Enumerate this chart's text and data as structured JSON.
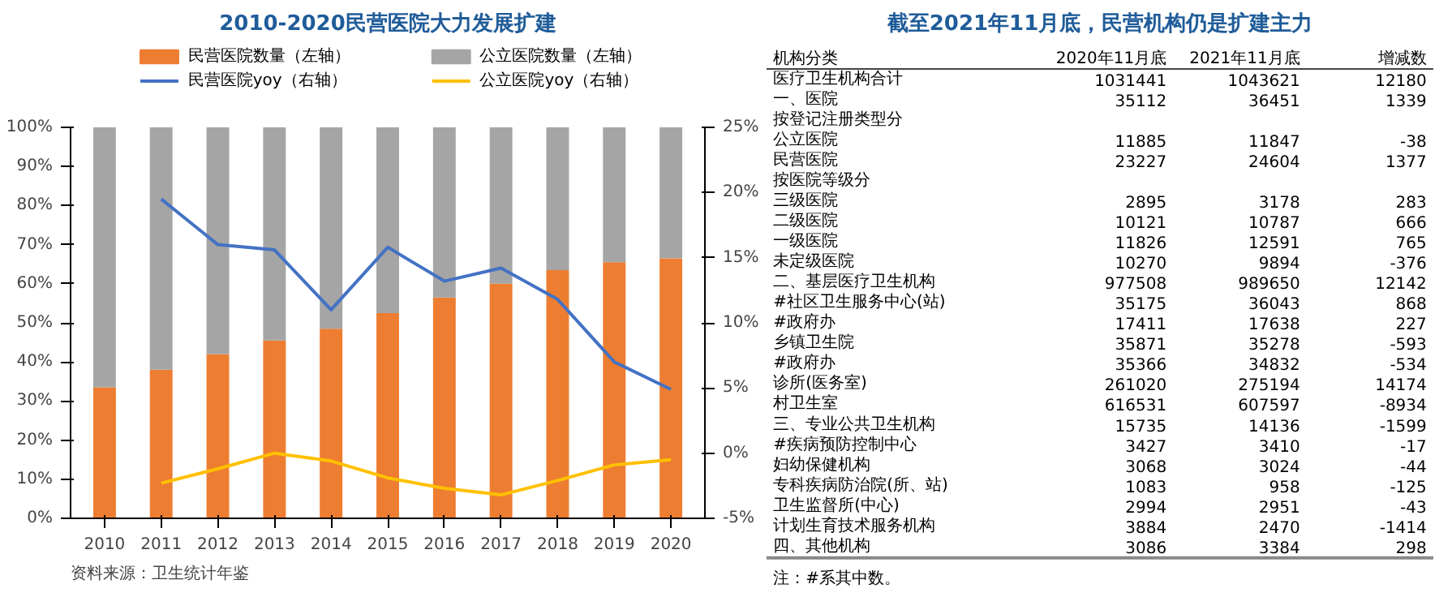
{
  "chart_data": [
    {
      "type": "bar",
      "title": "2010-2020民营医院大力发展扩建",
      "stacked": true,
      "categories": [
        "2010",
        "2011",
        "2012",
        "2013",
        "2014",
        "2015",
        "2016",
        "2017",
        "2018",
        "2019",
        "2020"
      ],
      "series": [
        {
          "name": "民营医院数量（左轴）",
          "color": "#ed7d31",
          "values": [
            33.5,
            38,
            42,
            45.5,
            48.5,
            52.5,
            56.5,
            60,
            63.5,
            65.5,
            66.5
          ]
        },
        {
          "name": "公立医院数量（左轴）",
          "color": "#a5a5a5",
          "values": [
            66.5,
            62,
            58,
            54.5,
            51.5,
            47.5,
            43.5,
            40,
            36.5,
            34.5,
            33.5
          ]
        },
        {
          "name": "民营医院yoy（右轴）",
          "type": "line",
          "axis": "y2",
          "color": "#4472c4",
          "values": [
            null,
            19.5,
            16,
            15.6,
            11,
            15.8,
            13.2,
            14.2,
            11.8,
            7,
            4.9
          ]
        },
        {
          "name": "公立医院yoy（右轴）",
          "type": "line",
          "axis": "y2",
          "color": "#ffc000",
          "values": [
            null,
            -2.3,
            -1.2,
            0,
            -0.6,
            -1.9,
            -2.7,
            -3.2,
            -2.1,
            -0.9,
            -0.5
          ]
        }
      ],
      "ylim": [
        0,
        100
      ],
      "yticks": [
        {
          "value": 0,
          "label": "0%"
        },
        {
          "value": 10,
          "label": "10%"
        },
        {
          "value": 20,
          "label": "20%"
        },
        {
          "value": 30,
          "label": "30%"
        },
        {
          "value": 40,
          "label": "40%"
        },
        {
          "value": 50,
          "label": "50%"
        },
        {
          "value": 60,
          "label": "60%"
        },
        {
          "value": 70,
          "label": "70%"
        },
        {
          "value": 80,
          "label": "80%"
        },
        {
          "value": 90,
          "label": "90%"
        },
        {
          "value": 100,
          "label": "100%"
        }
      ],
      "y2lim": [
        -5,
        25
      ],
      "y2ticks": [
        {
          "value": -5,
          "label": "-5%"
        },
        {
          "value": 0,
          "label": "0%"
        },
        {
          "value": 5,
          "label": "5%"
        },
        {
          "value": 10,
          "label": "10%"
        },
        {
          "value": 15,
          "label": "15%"
        },
        {
          "value": 20,
          "label": "20%"
        },
        {
          "value": 25,
          "label": "25%"
        }
      ],
      "grid": false,
      "legend": "top",
      "marker": "none",
      "line_style": "solid",
      "annotations": [
        "资料来源：卫生统计年鉴"
      ]
    },
    {
      "type": "other",
      "title": "截至2021年11月底，民营机构仍是扩建主力",
      "data_labels": true,
      "categories": [
        "医疗卫生机构合计",
        "一、医院",
        "按登记注册类型分",
        "公立医院",
        "民营医院",
        "按医院等级分",
        "三级医院",
        "二级医院",
        "一级医院",
        "未定级医院",
        "二、基层医疗卫生机构",
        "#社区卫生服务中心(站)",
        "#政府办",
        "乡镇卫生院",
        "#政府办",
        "诊所(医务室)",
        "村卫生室",
        "三、专业公共卫生机构",
        "#疾病预防控制中心",
        "妇幼保健机构",
        "专科疾病防治院(所、站)",
        "卫生监督所(中心)",
        "计划生育技术服务机构",
        "四、其他机构"
      ],
      "series": [
        {
          "name": "2020年11月底",
          "values": [
            1031441,
            35112,
            null,
            11885,
            23227,
            null,
            2895,
            10121,
            11826,
            10270,
            977508,
            35175,
            17411,
            35871,
            35366,
            261020,
            616531,
            15735,
            3427,
            3068,
            1083,
            2994,
            3884,
            3086
          ]
        },
        {
          "name": "2021年11月底",
          "values": [
            1043621,
            36451,
            null,
            11847,
            24604,
            null,
            3178,
            10787,
            12591,
            9894,
            989650,
            36043,
            17638,
            35278,
            34832,
            275194,
            607597,
            14136,
            3410,
            3024,
            958,
            2951,
            2470,
            3384
          ]
        },
        {
          "name": "增减数",
          "values": [
            12180,
            1339,
            null,
            -38,
            1377,
            null,
            283,
            666,
            765,
            -376,
            12142,
            868,
            227,
            -593,
            -534,
            14174,
            -8934,
            -1599,
            -17,
            -44,
            -125,
            -43,
            -1414,
            298
          ]
        }
      ],
      "annotations": [
        "机构分类",
        "注：#系其中数。"
      ]
    }
  ]
}
